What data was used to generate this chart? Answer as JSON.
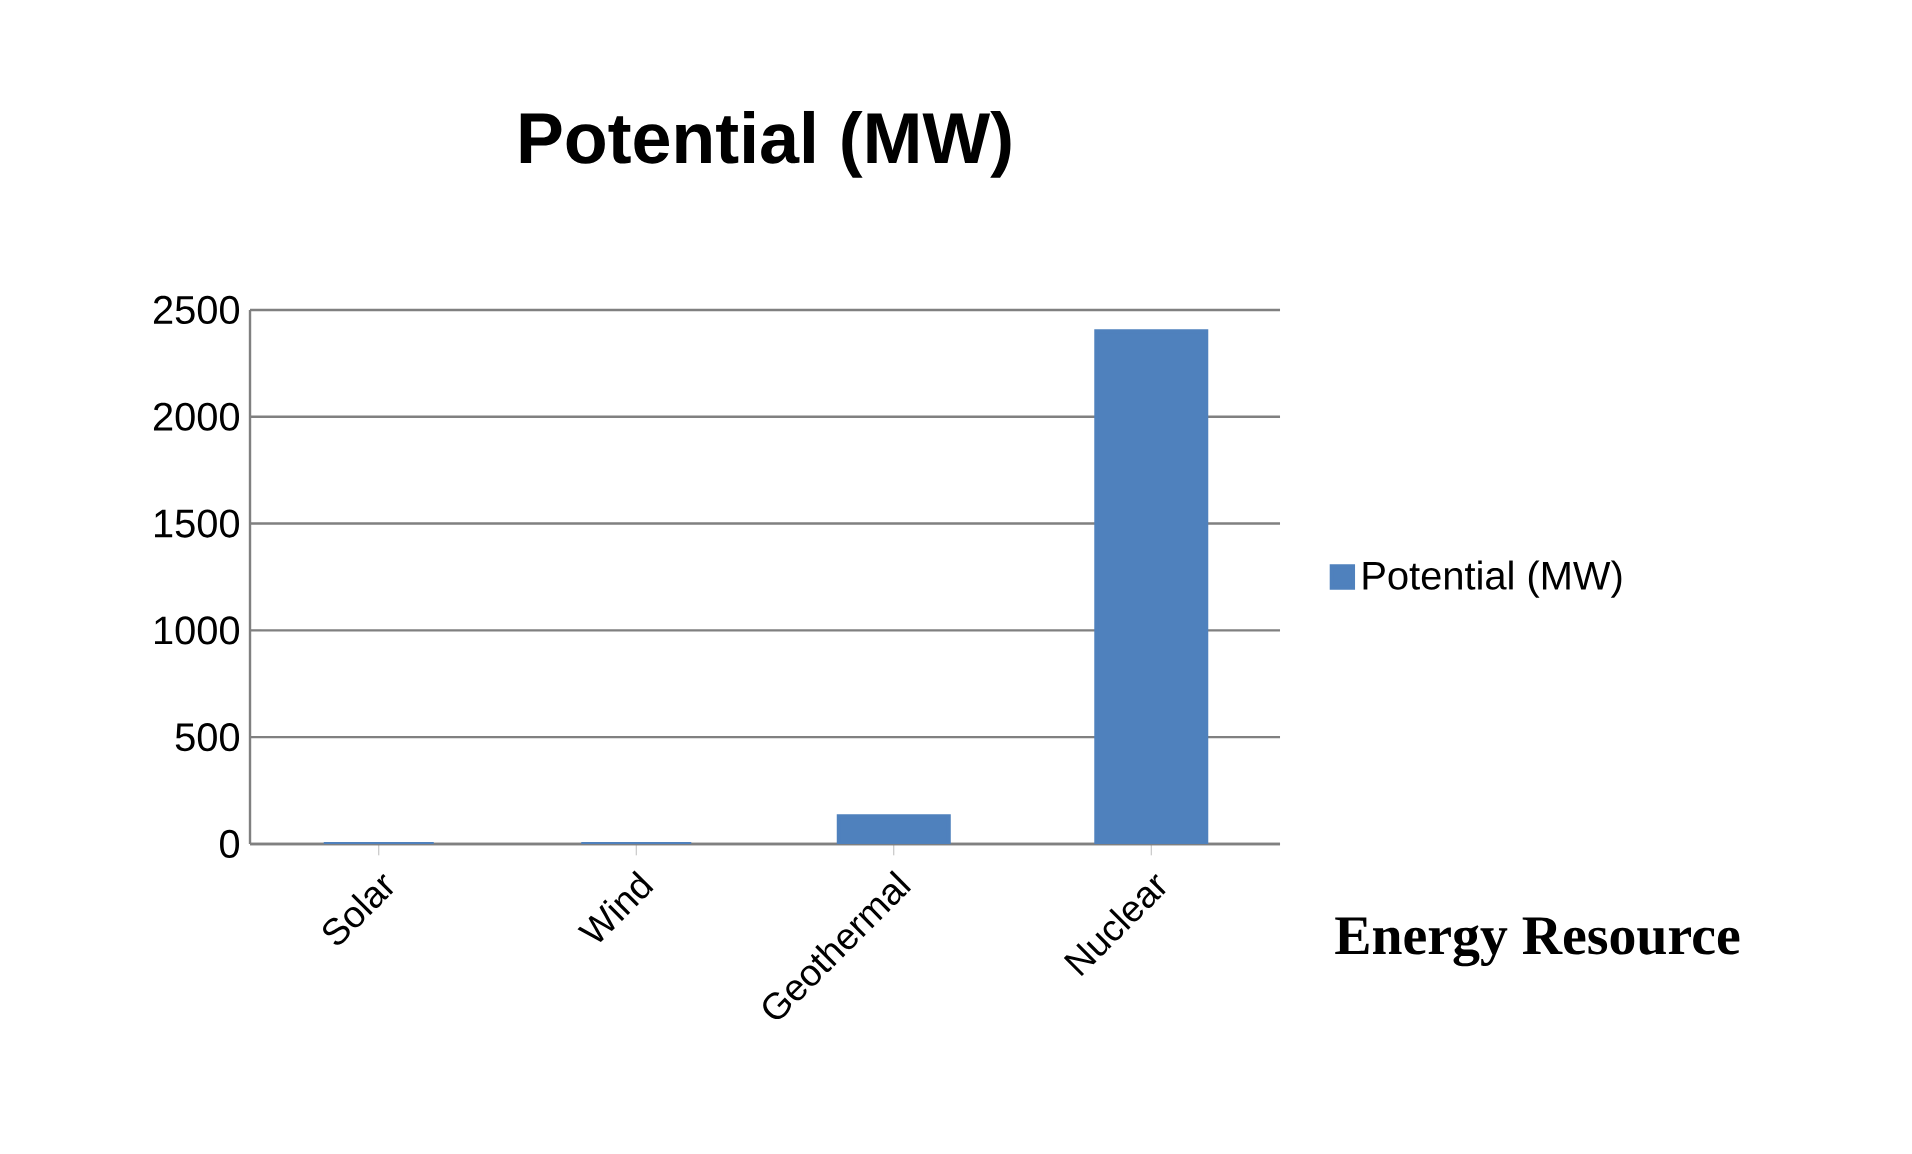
{
  "chart_data": {
    "type": "bar",
    "title": "Potential (MW)",
    "xlabel": "Energy Resource",
    "categories": [
      "Solar",
      "Wind",
      "Geothermal",
      "Nuclear"
    ],
    "series": [
      {
        "name": "Potential (MW)",
        "color": "#4f81bd",
        "values": [
          0,
          0,
          130,
          2400
        ]
      }
    ],
    "ylim": [
      0,
      2500
    ],
    "yticks": [
      0,
      500,
      1000,
      1500,
      2000,
      2500
    ],
    "grid": "y",
    "legend": "right"
  }
}
